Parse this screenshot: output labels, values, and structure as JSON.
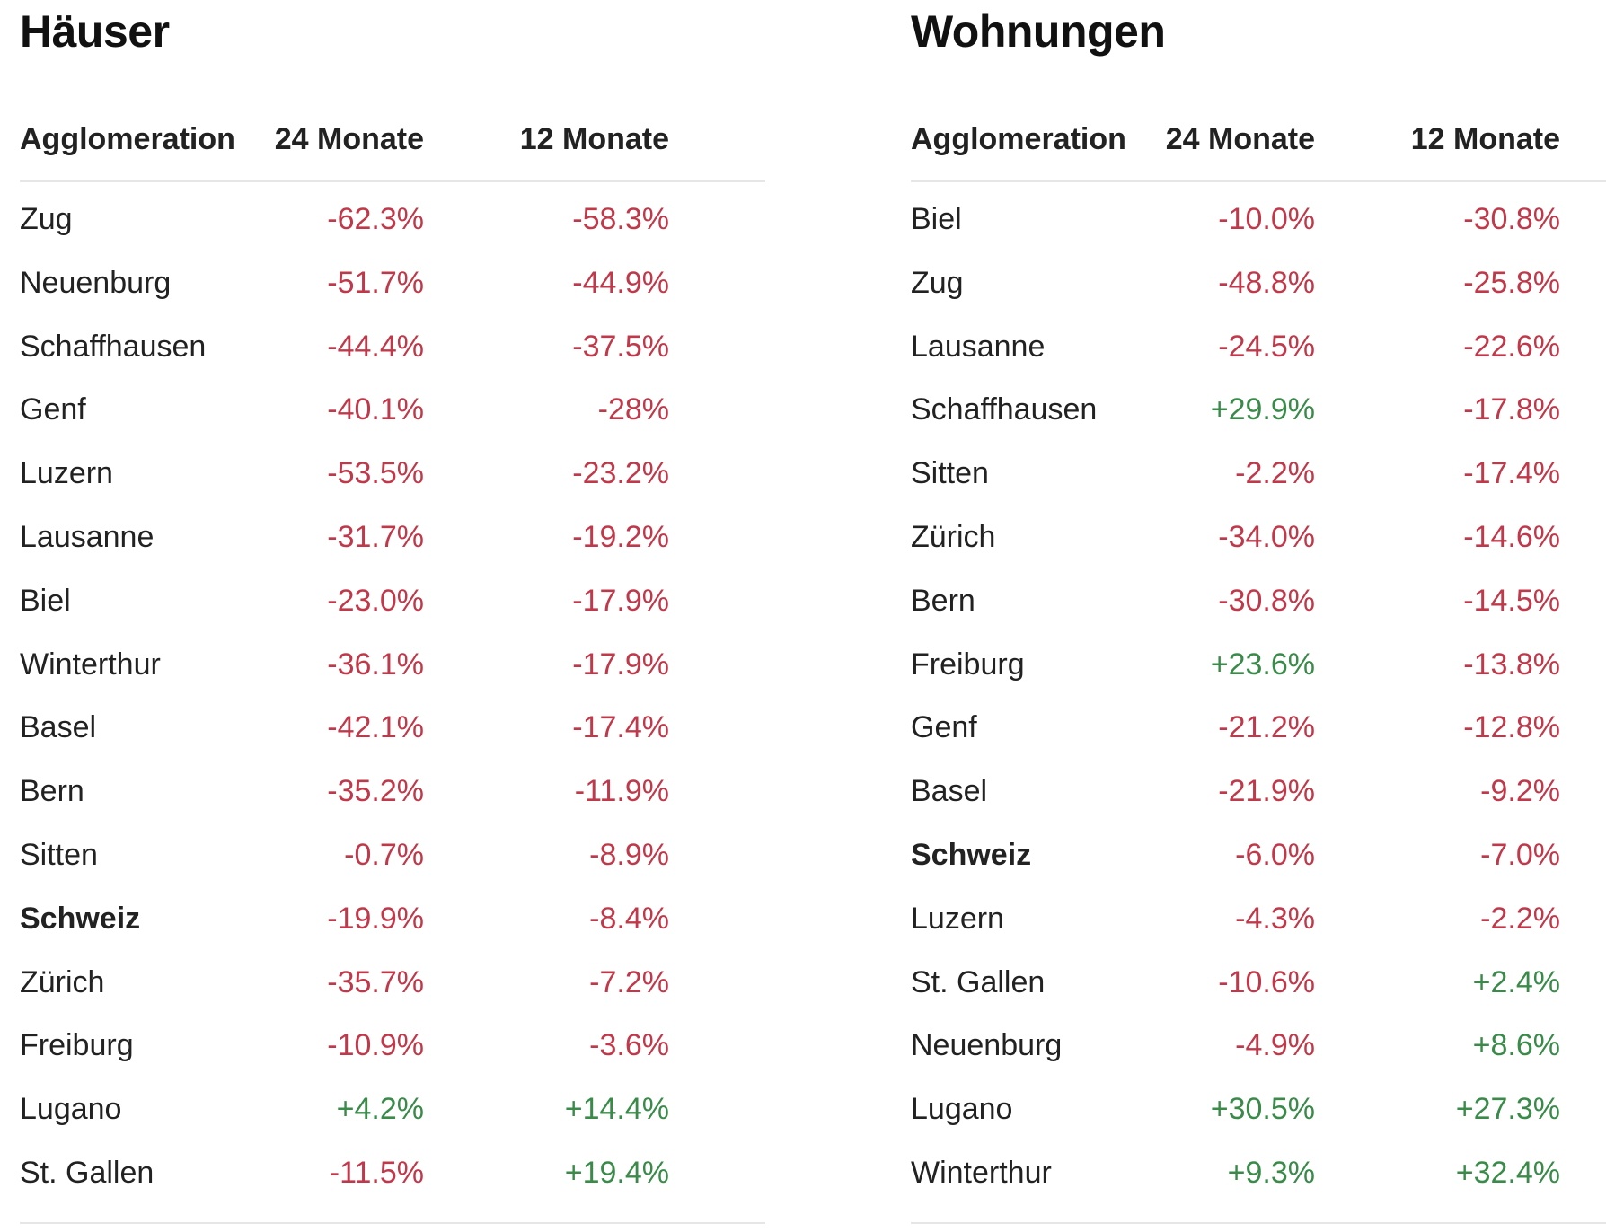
{
  "colors": {
    "negative": "#c0394a",
    "positive": "#3a8a4a",
    "text": "#222222"
  },
  "tables": [
    {
      "title": "Häuser",
      "columns": [
        "Agglomeration",
        "24 Monate",
        "12 Monate"
      ],
      "rows": [
        {
          "name": "Zug",
          "v24": "-62.3%",
          "v12": "-58.3%",
          "bold": false
        },
        {
          "name": "Neuenburg",
          "v24": "-51.7%",
          "v12": "-44.9%",
          "bold": false
        },
        {
          "name": "Schaffhausen",
          "v24": "-44.4%",
          "v12": "-37.5%",
          "bold": false
        },
        {
          "name": "Genf",
          "v24": "-40.1%",
          "v12": "-28%",
          "bold": false
        },
        {
          "name": "Luzern",
          "v24": "-53.5%",
          "v12": "-23.2%",
          "bold": false
        },
        {
          "name": "Lausanne",
          "v24": "-31.7%",
          "v12": "-19.2%",
          "bold": false
        },
        {
          "name": "Biel",
          "v24": "-23.0%",
          "v12": "-17.9%",
          "bold": false
        },
        {
          "name": "Winterthur",
          "v24": "-36.1%",
          "v12": "-17.9%",
          "bold": false
        },
        {
          "name": "Basel",
          "v24": "-42.1%",
          "v12": "-17.4%",
          "bold": false
        },
        {
          "name": "Bern",
          "v24": "-35.2%",
          "v12": "-11.9%",
          "bold": false
        },
        {
          "name": "Sitten",
          "v24": "-0.7%",
          "v12": "-8.9%",
          "bold": false
        },
        {
          "name": "Schweiz",
          "v24": "-19.9%",
          "v12": "-8.4%",
          "bold": true
        },
        {
          "name": "Zürich",
          "v24": "-35.7%",
          "v12": "-7.2%",
          "bold": false
        },
        {
          "name": "Freiburg",
          "v24": "-10.9%",
          "v12": "-3.6%",
          "bold": false
        },
        {
          "name": "Lugano",
          "v24": "+4.2%",
          "v12": "+14.4%",
          "bold": false
        },
        {
          "name": "St. Gallen",
          "v24": "-11.5%",
          "v12": "+19.4%",
          "bold": false
        }
      ]
    },
    {
      "title": "Wohnungen",
      "columns": [
        "Agglomeration",
        "24 Monate",
        "12 Monate"
      ],
      "rows": [
        {
          "name": "Biel",
          "v24": "-10.0%",
          "v12": "-30.8%",
          "bold": false
        },
        {
          "name": "Zug",
          "v24": "-48.8%",
          "v12": "-25.8%",
          "bold": false
        },
        {
          "name": "Lausanne",
          "v24": "-24.5%",
          "v12": "-22.6%",
          "bold": false
        },
        {
          "name": "Schaffhausen",
          "v24": "+29.9%",
          "v12": "-17.8%",
          "bold": false
        },
        {
          "name": "Sitten",
          "v24": "-2.2%",
          "v12": "-17.4%",
          "bold": false
        },
        {
          "name": "Zürich",
          "v24": "-34.0%",
          "v12": "-14.6%",
          "bold": false
        },
        {
          "name": "Bern",
          "v24": "-30.8%",
          "v12": "-14.5%",
          "bold": false
        },
        {
          "name": "Freiburg",
          "v24": "+23.6%",
          "v12": "-13.8%",
          "bold": false
        },
        {
          "name": "Genf",
          "v24": "-21.2%",
          "v12": "-12.8%",
          "bold": false
        },
        {
          "name": "Basel",
          "v24": "-21.9%",
          "v12": "-9.2%",
          "bold": false
        },
        {
          "name": "Schweiz",
          "v24": "-6.0%",
          "v12": "-7.0%",
          "bold": true
        },
        {
          "name": "Luzern",
          "v24": "-4.3%",
          "v12": "-2.2%",
          "bold": false
        },
        {
          "name": "St. Gallen",
          "v24": "-10.6%",
          "v12": "+2.4%",
          "bold": false
        },
        {
          "name": "Neuenburg",
          "v24": "-4.9%",
          "v12": "+8.6%",
          "bold": false
        },
        {
          "name": "Lugano",
          "v24": "+30.5%",
          "v12": "+27.3%",
          "bold": false
        },
        {
          "name": "Winterthur",
          "v24": "+9.3%",
          "v12": "+32.4%",
          "bold": false
        }
      ]
    }
  ]
}
